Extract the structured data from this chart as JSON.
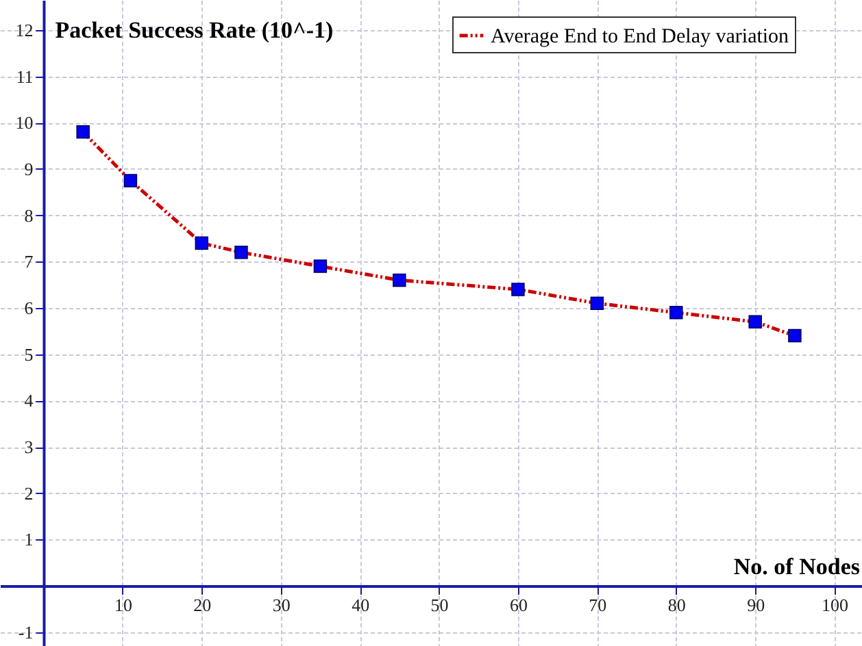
{
  "chart_data": {
    "type": "line",
    "ylabel": "Packet Success Rate (10^-1)",
    "xlabel": "No. of Nodes",
    "x": [
      5,
      11,
      20,
      25,
      35,
      45,
      60,
      70,
      80,
      90,
      95
    ],
    "series": [
      {
        "name": "Average End to End Delay variation",
        "color": "#cc0000",
        "values": [
          9.8,
          8.75,
          7.4,
          7.2,
          6.9,
          6.6,
          6.4,
          6.1,
          5.9,
          5.7,
          5.4
        ]
      }
    ],
    "xlim": [
      -5.5,
      103.5
    ],
    "ylim": [
      -1.3,
      12.65
    ],
    "xticks": [
      10,
      20,
      30,
      40,
      50,
      60,
      70,
      80,
      90,
      100
    ],
    "yticks": [
      -1,
      1,
      2,
      3,
      4,
      5,
      6,
      7,
      8,
      9,
      10,
      11,
      12
    ],
    "grid": true,
    "legend": "top right",
    "marker": "square",
    "line_style": "dashed"
  }
}
